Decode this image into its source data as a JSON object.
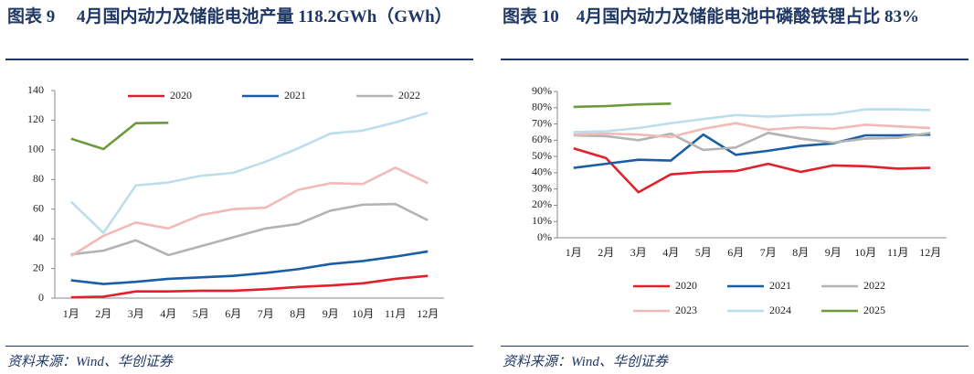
{
  "chart_data": [
    {
      "type": "line",
      "title": "图表 9　 4月国内动力及储能电池产量 118.2GWh（GWh）",
      "source": "资料来源：Wind、华创证券",
      "categories": [
        "1月",
        "2月",
        "3月",
        "4月",
        "5月",
        "6月",
        "7月",
        "8月",
        "9月",
        "10月",
        "11月",
        "12月"
      ],
      "ylim": [
        0,
        140
      ],
      "yticks": [
        0,
        20,
        40,
        60,
        80,
        100,
        120,
        140
      ],
      "legend": "top",
      "series": [
        {
          "name": "2020",
          "color": "#e0212b",
          "values": [
            0.5,
            1,
            4.5,
            4.5,
            5,
            5,
            6,
            7.5,
            8.5,
            10,
            13,
            15
          ]
        },
        {
          "name": "2021",
          "color": "#1a5ea8",
          "values": [
            12,
            9.5,
            11,
            13,
            14,
            15,
            17,
            19.5,
            23,
            25,
            28,
            31.5
          ]
        },
        {
          "name": "2022",
          "color": "#b3b3b3",
          "values": [
            29.5,
            32,
            39,
            29,
            35,
            41,
            47,
            50,
            59,
            63,
            63.5,
            52.5
          ]
        },
        {
          "color": "#f2b9b9",
          "values": [
            28.4,
            42,
            51,
            47,
            56,
            60,
            61,
            73,
            77.5,
            77,
            88,
            77.5
          ]
        },
        {
          "color": "#bcdeec",
          "values": [
            65,
            44,
            76,
            78,
            82.5,
            84.5,
            92,
            101,
            111,
            113,
            118.5,
            125
          ]
        },
        {
          "color": "#6a9a3b",
          "values": [
            107.5,
            100.5,
            118,
            118.2,
            null,
            null,
            null,
            null,
            null,
            null,
            null,
            null
          ]
        }
      ]
    },
    {
      "type": "line",
      "title": "图表 10　4月国内动力及储能电池中磷酸铁锂占比 83%",
      "source": "资料来源：Wind、华创证券",
      "categories": [
        "1月",
        "2月",
        "3月",
        "4月",
        "5月",
        "6月",
        "7月",
        "8月",
        "9月",
        "10月",
        "11月",
        "12月"
      ],
      "ylim": [
        0,
        90
      ],
      "yticks": [
        {
          "value": 0,
          "label": "0%"
        },
        {
          "value": 10,
          "label": "10%"
        },
        {
          "value": 20,
          "label": "20%"
        },
        {
          "value": 30,
          "label": "30%"
        },
        {
          "value": 40,
          "label": "40%"
        },
        {
          "value": 50,
          "label": "50%"
        },
        {
          "value": 60,
          "label": "60%"
        },
        {
          "value": 70,
          "label": "70%"
        },
        {
          "value": 80,
          "label": "80%"
        },
        {
          "value": 90,
          "label": "90%"
        }
      ],
      "legend": "bottom",
      "series": [
        {
          "name": "2020",
          "color": "#e0212b",
          "values": [
            55,
            49,
            28,
            39,
            40.5,
            41,
            45.5,
            40.5,
            44.5,
            44,
            42.5,
            43
          ]
        },
        {
          "name": "2021",
          "color": "#1a5ea8",
          "values": [
            43,
            45.5,
            48,
            47.5,
            63.5,
            51,
            53.5,
            56.5,
            58,
            63,
            63,
            63.5
          ]
        },
        {
          "name": "2022",
          "color": "#b3b3b3",
          "values": [
            63,
            62.5,
            60,
            64,
            54,
            55.5,
            64.5,
            61,
            58.5,
            61,
            61.5,
            64.5
          ]
        },
        {
          "name": "2023",
          "color": "#f2b9b9",
          "values": [
            63.5,
            64,
            63.5,
            62,
            67,
            70.5,
            66.5,
            68,
            67,
            69.5,
            68.5,
            67.5
          ]
        },
        {
          "name": "2024",
          "color": "#bcdeec",
          "values": [
            65,
            65.5,
            67.5,
            70.5,
            73,
            75.5,
            74.5,
            75.5,
            76,
            79,
            79,
            78.5
          ]
        },
        {
          "name": "2025",
          "color": "#6a9a3b",
          "values": [
            80.5,
            81,
            82,
            82.5,
            null,
            null,
            null,
            null,
            null,
            null,
            null,
            null
          ]
        }
      ]
    }
  ]
}
